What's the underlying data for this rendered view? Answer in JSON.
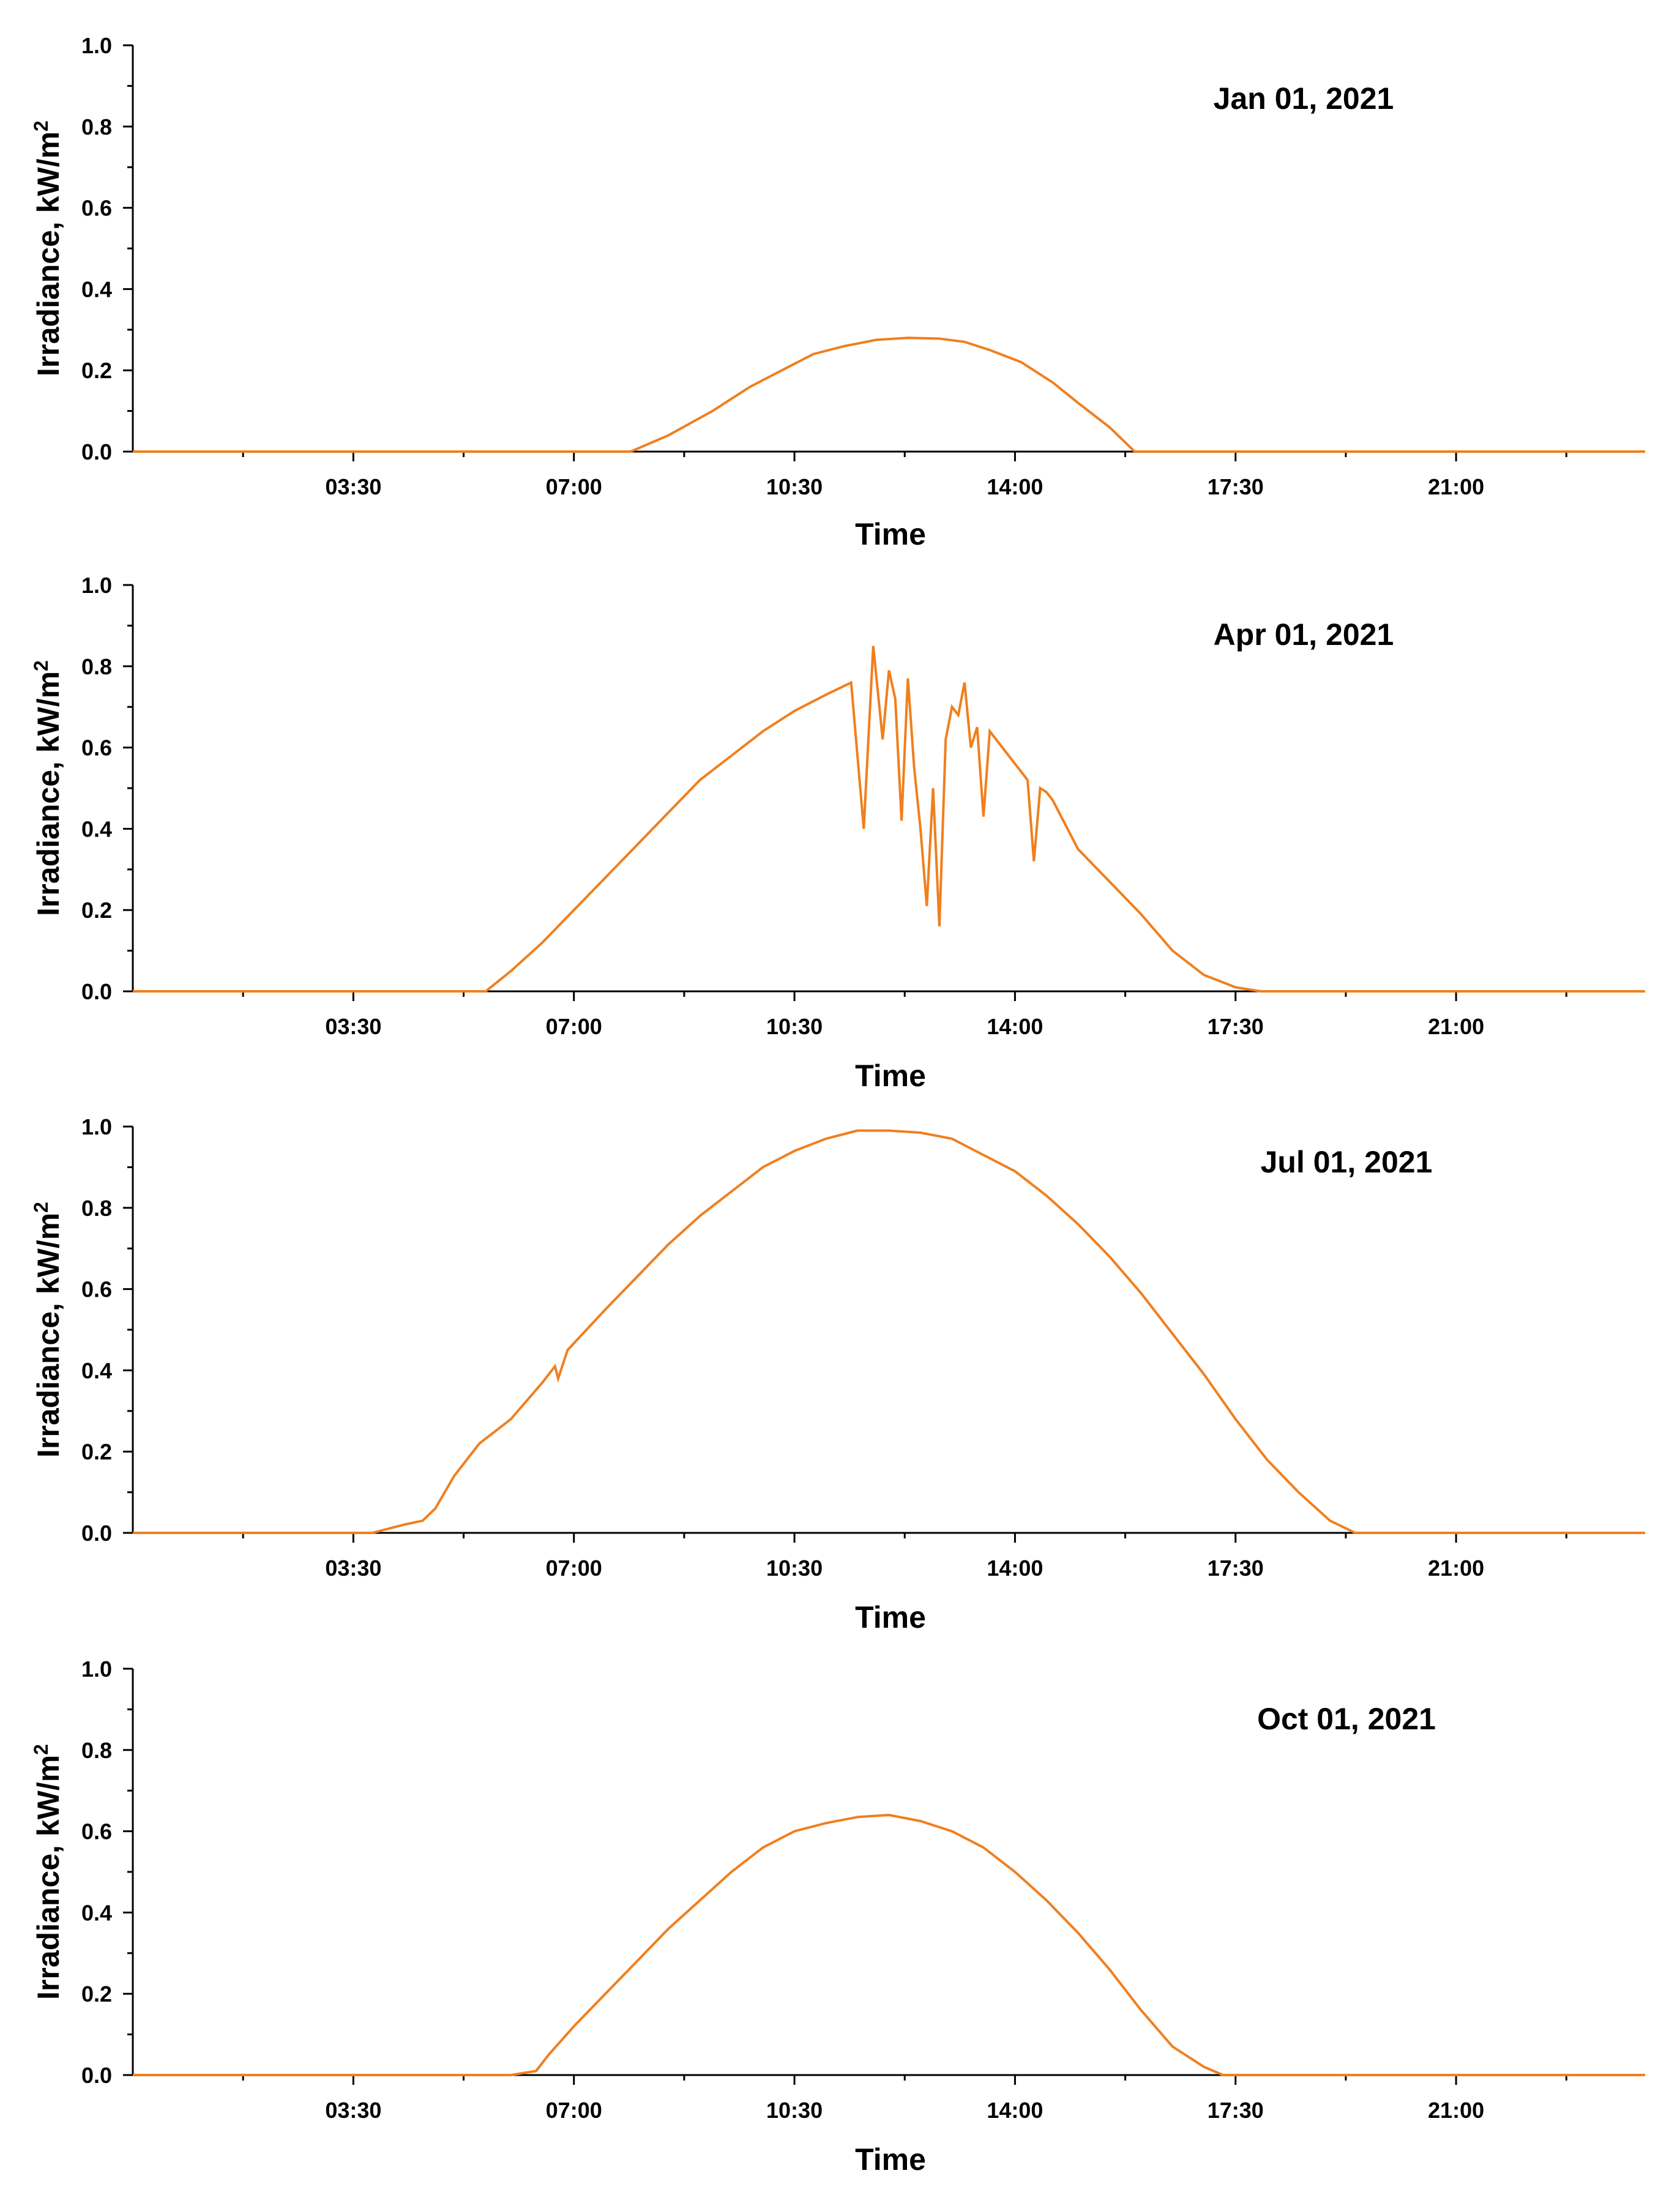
{
  "colors": {
    "series": "#F07F1E",
    "axis": "#000000",
    "background": "#FFFFFF"
  },
  "chart_data": [
    {
      "type": "line",
      "title": "Jan 01, 2021",
      "xlabel": "Time",
      "ylabel": "Irradiance, kW/m",
      "ylabel_sup": "2",
      "xlim": [
        0,
        24
      ],
      "ylim": [
        0,
        1
      ],
      "xticks": [
        3.5,
        7,
        10.5,
        14,
        17.5,
        21
      ],
      "xtick_labels": [
        "03:30",
        "07:00",
        "10:30",
        "14:00",
        "17:30",
        "21:00"
      ],
      "yticks": [
        0,
        0.2,
        0.4,
        0.6,
        0.8,
        1.0
      ],
      "ytick_labels": [
        "0.0",
        "0.2",
        "0.4",
        "0.6",
        "0.8",
        "1.0"
      ],
      "series": [
        {
          "name": "Irradiance",
          "x": [
            0,
            7.9,
            8.5,
            9.2,
            9.8,
            10.3,
            10.8,
            11.3,
            11.8,
            12.3,
            12.8,
            13.2,
            13.6,
            14.1,
            14.6,
            15.0,
            15.5,
            15.9,
            24
          ],
          "y": [
            0,
            0,
            0.04,
            0.1,
            0.16,
            0.2,
            0.24,
            0.26,
            0.275,
            0.28,
            0.278,
            0.27,
            0.25,
            0.22,
            0.17,
            0.12,
            0.06,
            0,
            0
          ]
        }
      ]
    },
    {
      "type": "line",
      "title": "Apr 01, 2021",
      "xlabel": "Time",
      "ylabel": "Irradiance, kW/m",
      "ylabel_sup": "2",
      "xlim": [
        0,
        24
      ],
      "ylim": [
        0,
        1
      ],
      "xticks": [
        3.5,
        7,
        10.5,
        14,
        17.5,
        21
      ],
      "xtick_labels": [
        "03:30",
        "07:00",
        "10:30",
        "14:00",
        "17:30",
        "21:00"
      ],
      "yticks": [
        0,
        0.2,
        0.4,
        0.6,
        0.8,
        1.0
      ],
      "ytick_labels": [
        "0.0",
        "0.2",
        "0.4",
        "0.6",
        "0.8",
        "1.0"
      ],
      "series": [
        {
          "name": "Irradiance",
          "x": [
            0,
            5.6,
            6.0,
            6.5,
            7.0,
            7.5,
            8.0,
            8.5,
            9.0,
            9.5,
            10.0,
            10.5,
            11.0,
            11.4,
            11.6,
            11.75,
            11.9,
            12.0,
            12.1,
            12.2,
            12.3,
            12.4,
            12.5,
            12.6,
            12.7,
            12.8,
            12.9,
            13.0,
            13.1,
            13.2,
            13.3,
            13.4,
            13.5,
            13.6,
            13.7,
            13.8,
            13.9,
            14.0,
            14.1,
            14.2,
            14.3,
            14.4,
            14.5,
            14.6,
            14.7,
            14.8,
            14.9,
            15.0,
            15.5,
            16.0,
            16.5,
            17.0,
            17.5,
            17.9,
            24
          ],
          "y": [
            0,
            0,
            0.05,
            0.12,
            0.2,
            0.28,
            0.36,
            0.44,
            0.52,
            0.58,
            0.64,
            0.69,
            0.73,
            0.76,
            0.4,
            0.85,
            0.62,
            0.79,
            0.72,
            0.42,
            0.77,
            0.55,
            0.4,
            0.21,
            0.5,
            0.16,
            0.62,
            0.7,
            0.68,
            0.76,
            0.6,
            0.65,
            0.43,
            0.64,
            0.62,
            0.6,
            0.58,
            0.56,
            0.54,
            0.52,
            0.32,
            0.5,
            0.49,
            0.47,
            0.44,
            0.41,
            0.38,
            0.35,
            0.27,
            0.19,
            0.1,
            0.04,
            0.01,
            0,
            0
          ]
        }
      ]
    },
    {
      "type": "line",
      "title": "Jul 01, 2021",
      "xlabel": "Time",
      "ylabel": "Irradiance, kW/m",
      "ylabel_sup": "2",
      "xlim": [
        0,
        24
      ],
      "ylim": [
        0,
        1
      ],
      "xticks": [
        3.5,
        7,
        10.5,
        14,
        17.5,
        21
      ],
      "xtick_labels": [
        "03:30",
        "07:00",
        "10:30",
        "14:00",
        "17:30",
        "21:00"
      ],
      "yticks": [
        0,
        0.2,
        0.4,
        0.6,
        0.8,
        1.0
      ],
      "ytick_labels": [
        "0.0",
        "0.2",
        "0.4",
        "0.6",
        "0.8",
        "1.0"
      ],
      "series": [
        {
          "name": "Irradiance",
          "x": [
            0,
            3.8,
            4.3,
            4.6,
            4.8,
            5.1,
            5.5,
            6.0,
            6.5,
            6.7,
            6.75,
            6.9,
            7.5,
            8.0,
            8.5,
            9.0,
            9.5,
            10.0,
            10.5,
            11.0,
            11.5,
            12.0,
            12.5,
            13.0,
            13.5,
            14.0,
            14.5,
            15.0,
            15.5,
            16.0,
            16.5,
            17.0,
            17.5,
            18.0,
            18.5,
            19.0,
            19.4,
            24
          ],
          "y": [
            0,
            0,
            0.02,
            0.03,
            0.06,
            0.14,
            0.22,
            0.28,
            0.37,
            0.41,
            0.38,
            0.45,
            0.55,
            0.63,
            0.71,
            0.78,
            0.84,
            0.9,
            0.94,
            0.97,
            0.99,
            0.99,
            0.985,
            0.97,
            0.93,
            0.89,
            0.83,
            0.76,
            0.68,
            0.59,
            0.49,
            0.39,
            0.28,
            0.18,
            0.1,
            0.03,
            0,
            0
          ]
        }
      ]
    },
    {
      "type": "line",
      "title": "Oct 01, 2021",
      "xlabel": "Time",
      "ylabel": "Irradiance, kW/m",
      "ylabel_sup": "2",
      "xlim": [
        0,
        24
      ],
      "ylim": [
        0,
        1
      ],
      "xticks": [
        3.5,
        7,
        10.5,
        14,
        17.5,
        21
      ],
      "xtick_labels": [
        "03:30",
        "07:00",
        "10:30",
        "14:00",
        "17:30",
        "21:00"
      ],
      "yticks": [
        0,
        0.2,
        0.4,
        0.6,
        0.8,
        1.0
      ],
      "ytick_labels": [
        "0.0",
        "0.2",
        "0.4",
        "0.6",
        "0.8",
        "1.0"
      ],
      "series": [
        {
          "name": "Irradiance",
          "x": [
            0,
            6.0,
            6.4,
            6.6,
            7.0,
            7.5,
            8.0,
            8.5,
            9.0,
            9.5,
            10.0,
            10.5,
            11.0,
            11.5,
            12.0,
            12.5,
            13.0,
            13.5,
            14.0,
            14.5,
            15.0,
            15.5,
            16.0,
            16.5,
            17.0,
            17.3,
            24
          ],
          "y": [
            0,
            0,
            0.01,
            0.05,
            0.12,
            0.2,
            0.28,
            0.36,
            0.43,
            0.5,
            0.56,
            0.6,
            0.62,
            0.635,
            0.64,
            0.625,
            0.6,
            0.56,
            0.5,
            0.43,
            0.35,
            0.26,
            0.16,
            0.07,
            0.02,
            0,
            0
          ]
        }
      ]
    }
  ]
}
